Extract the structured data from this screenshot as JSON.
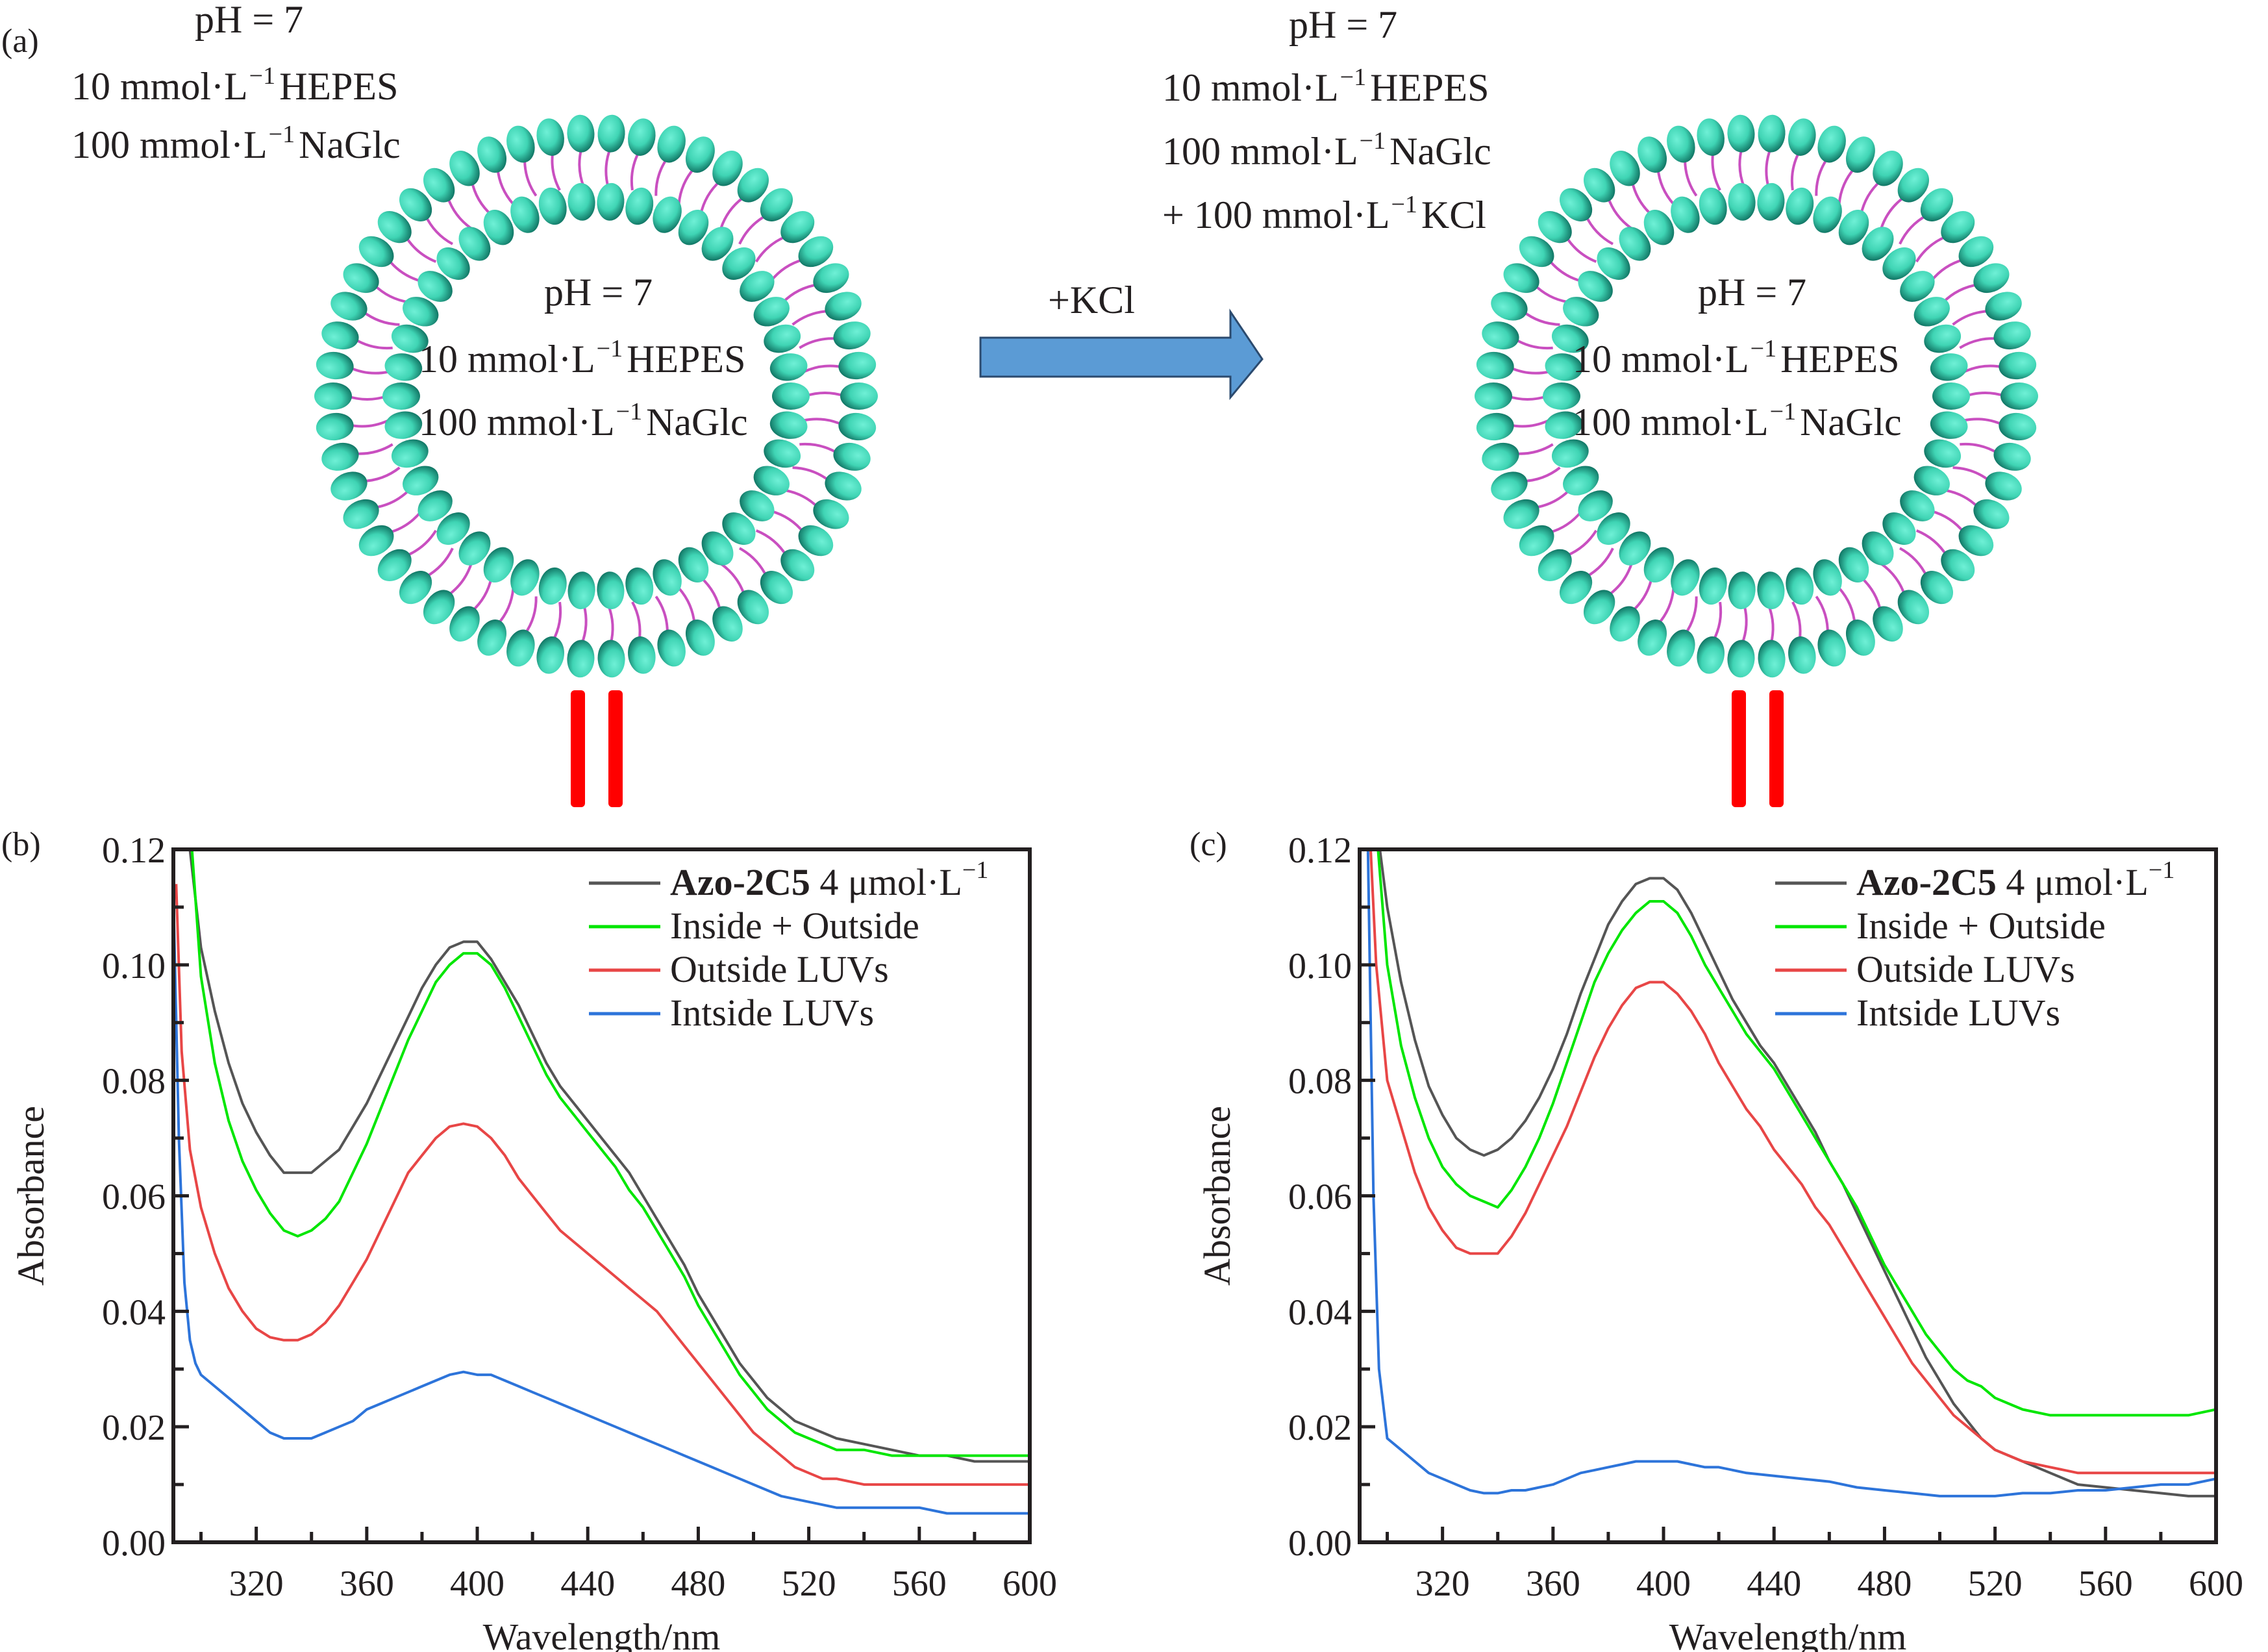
{
  "panel_labels": {
    "a": "(a)",
    "b": "(b)",
    "c": "(c)"
  },
  "scheme": {
    "left_outside": [
      "pH = 7",
      "10 mmol·L",
      "HEPES",
      "100 mmol·L",
      "NaGlc"
    ],
    "left_inside": [
      "pH = 7",
      "10 mmol·L",
      "HEPES",
      "100 mmol·L",
      "NaGlc"
    ],
    "right_outside": [
      "pH = 7",
      "10 mmol·L",
      "HEPES",
      "100 mmol·L",
      "NaGlc",
      "+ 100 mmol·L",
      "KCl"
    ],
    "right_inside": [
      "pH = 7",
      "10 mmol·L",
      "HEPES",
      "100 mmol·L",
      "NaGlc"
    ],
    "unit_exponent": "−1",
    "arrow_label": "+KCl",
    "colors": {
      "headgroup": "#3fd4b4",
      "tail": "#c94fc0",
      "arrow": "#5b9bd5",
      "equals": "#ff0000"
    }
  },
  "chart_data": [
    {
      "panel": "b",
      "type": "line",
      "title": "",
      "xlabel": "Wavelength/nm",
      "ylabel": "Absorbance",
      "xlim": [
        290,
        600
      ],
      "ylim": [
        0,
        0.12
      ],
      "xticks": [
        320,
        360,
        400,
        440,
        480,
        520,
        560,
        600
      ],
      "yticks": [
        "0.00",
        "0.02",
        "0.04",
        "0.06",
        "0.08",
        "0.10",
        "0.12"
      ],
      "legend_position": "top-right",
      "series": [
        {
          "name": "Azo-2C5",
          "name_suffix": " 4 μmol·L",
          "name_exp": "−1",
          "color": "#555555",
          "x": [
            293,
            296,
            300,
            305,
            310,
            315,
            320,
            325,
            330,
            335,
            340,
            345,
            350,
            355,
            360,
            365,
            370,
            375,
            380,
            385,
            390,
            395,
            400,
            405,
            410,
            415,
            420,
            425,
            430,
            435,
            440,
            445,
            450,
            455,
            460,
            465,
            470,
            475,
            480,
            485,
            490,
            495,
            500,
            505,
            510,
            515,
            520,
            525,
            530,
            540,
            550,
            560,
            570,
            580,
            590,
            600
          ],
          "y": [
            0.135,
            0.12,
            0.103,
            0.092,
            0.083,
            0.076,
            0.071,
            0.067,
            0.064,
            0.064,
            0.064,
            0.066,
            0.068,
            0.072,
            0.076,
            0.081,
            0.086,
            0.091,
            0.096,
            0.1,
            0.103,
            0.104,
            0.104,
            0.101,
            0.097,
            0.093,
            0.088,
            0.083,
            0.079,
            0.076,
            0.073,
            0.07,
            0.067,
            0.064,
            0.06,
            0.056,
            0.052,
            0.048,
            0.043,
            0.039,
            0.035,
            0.031,
            0.028,
            0.025,
            0.023,
            0.021,
            0.02,
            0.019,
            0.018,
            0.017,
            0.016,
            0.015,
            0.015,
            0.014,
            0.014,
            0.014
          ]
        },
        {
          "name": "Inside + Outside",
          "color": "#00e600",
          "x": [
            296,
            300,
            305,
            310,
            315,
            320,
            325,
            330,
            335,
            340,
            345,
            350,
            355,
            360,
            365,
            370,
            375,
            380,
            385,
            390,
            395,
            400,
            405,
            410,
            415,
            420,
            425,
            430,
            435,
            440,
            445,
            450,
            455,
            460,
            465,
            470,
            475,
            480,
            485,
            490,
            495,
            500,
            505,
            510,
            515,
            520,
            525,
            530,
            540,
            550,
            560,
            570,
            580,
            590,
            600
          ],
          "y": [
            0.125,
            0.098,
            0.083,
            0.073,
            0.066,
            0.061,
            0.057,
            0.054,
            0.053,
            0.054,
            0.056,
            0.059,
            0.064,
            0.069,
            0.075,
            0.081,
            0.087,
            0.092,
            0.097,
            0.1,
            0.102,
            0.102,
            0.1,
            0.096,
            0.091,
            0.086,
            0.081,
            0.077,
            0.074,
            0.071,
            0.068,
            0.065,
            0.061,
            0.058,
            0.054,
            0.05,
            0.046,
            0.041,
            0.037,
            0.033,
            0.029,
            0.026,
            0.023,
            0.021,
            0.019,
            0.018,
            0.017,
            0.016,
            0.016,
            0.015,
            0.015,
            0.015,
            0.015,
            0.015,
            0.015
          ]
        },
        {
          "name": "Outside LUVs",
          "color": "#e84646",
          "x": [
            291,
            293,
            296,
            300,
            305,
            310,
            315,
            320,
            325,
            330,
            335,
            340,
            345,
            350,
            355,
            360,
            365,
            370,
            375,
            380,
            385,
            390,
            395,
            400,
            405,
            410,
            415,
            420,
            425,
            430,
            435,
            440,
            445,
            450,
            455,
            460,
            465,
            470,
            475,
            480,
            485,
            490,
            495,
            500,
            505,
            510,
            515,
            520,
            525,
            530,
            540,
            550,
            560,
            570,
            580,
            590,
            600
          ],
          "y": [
            0.114,
            0.085,
            0.068,
            0.058,
            0.05,
            0.044,
            0.04,
            0.037,
            0.0355,
            0.035,
            0.035,
            0.036,
            0.038,
            0.041,
            0.045,
            0.049,
            0.054,
            0.059,
            0.064,
            0.067,
            0.07,
            0.072,
            0.0725,
            0.072,
            0.07,
            0.067,
            0.063,
            0.06,
            0.057,
            0.054,
            0.052,
            0.05,
            0.048,
            0.046,
            0.044,
            0.042,
            0.04,
            0.037,
            0.034,
            0.031,
            0.028,
            0.025,
            0.022,
            0.019,
            0.017,
            0.015,
            0.013,
            0.012,
            0.011,
            0.011,
            0.01,
            0.01,
            0.01,
            0.01,
            0.01,
            0.01,
            0.01
          ]
        },
        {
          "name": "Intside LUVs",
          "color": "#2d74da",
          "x": [
            290,
            292,
            294,
            296,
            298,
            300,
            305,
            310,
            315,
            320,
            325,
            330,
            335,
            340,
            345,
            350,
            355,
            360,
            365,
            370,
            375,
            380,
            385,
            390,
            395,
            400,
            405,
            410,
            415,
            420,
            425,
            430,
            435,
            440,
            445,
            450,
            455,
            460,
            465,
            470,
            475,
            480,
            485,
            490,
            495,
            500,
            505,
            510,
            520,
            530,
            540,
            550,
            560,
            570,
            580,
            590,
            600
          ],
          "y": [
            0.112,
            0.07,
            0.045,
            0.035,
            0.031,
            0.029,
            0.027,
            0.025,
            0.023,
            0.021,
            0.019,
            0.018,
            0.018,
            0.018,
            0.019,
            0.02,
            0.021,
            0.023,
            0.024,
            0.025,
            0.026,
            0.027,
            0.028,
            0.029,
            0.0295,
            0.029,
            0.029,
            0.028,
            0.027,
            0.026,
            0.025,
            0.024,
            0.023,
            0.022,
            0.021,
            0.02,
            0.019,
            0.018,
            0.017,
            0.016,
            0.015,
            0.014,
            0.013,
            0.012,
            0.011,
            0.01,
            0.009,
            0.008,
            0.007,
            0.006,
            0.006,
            0.006,
            0.006,
            0.005,
            0.005,
            0.005,
            0.005
          ]
        }
      ]
    },
    {
      "panel": "c",
      "type": "line",
      "title": "",
      "xlabel": "Wavelength/nm",
      "ylabel": "Absorbance",
      "xlim": [
        290,
        600
      ],
      "ylim": [
        0,
        0.12
      ],
      "xticks": [
        320,
        360,
        400,
        440,
        480,
        520,
        560,
        600
      ],
      "yticks": [
        "0.00",
        "0.02",
        "0.04",
        "0.06",
        "0.08",
        "0.10",
        "0.12"
      ],
      "legend_position": "top-right",
      "series": [
        {
          "name": "Azo-2C5",
          "name_suffix": " 4 μmol·L",
          "name_exp": "−1",
          "color": "#555555",
          "x": [
            296,
            300,
            305,
            310,
            315,
            320,
            325,
            330,
            335,
            340,
            345,
            350,
            355,
            360,
            365,
            370,
            375,
            380,
            385,
            390,
            395,
            400,
            405,
            410,
            415,
            420,
            425,
            430,
            435,
            440,
            445,
            450,
            455,
            460,
            465,
            470,
            475,
            480,
            485,
            490,
            495,
            500,
            505,
            510,
            515,
            520,
            525,
            530,
            540,
            550,
            560,
            570,
            580,
            590,
            600
          ],
          "y": [
            0.125,
            0.11,
            0.097,
            0.087,
            0.079,
            0.074,
            0.07,
            0.068,
            0.067,
            0.068,
            0.07,
            0.073,
            0.077,
            0.082,
            0.088,
            0.095,
            0.101,
            0.107,
            0.111,
            0.114,
            0.115,
            0.115,
            0.113,
            0.109,
            0.104,
            0.099,
            0.094,
            0.09,
            0.086,
            0.083,
            0.079,
            0.075,
            0.071,
            0.066,
            0.062,
            0.057,
            0.052,
            0.047,
            0.042,
            0.037,
            0.032,
            0.028,
            0.024,
            0.021,
            0.018,
            0.016,
            0.015,
            0.014,
            0.012,
            0.01,
            0.0095,
            0.009,
            0.0085,
            0.008,
            0.008
          ]
        },
        {
          "name": "Inside + Outside",
          "color": "#00e600",
          "x": [
            296,
            300,
            305,
            310,
            315,
            320,
            325,
            330,
            335,
            340,
            345,
            350,
            355,
            360,
            365,
            370,
            375,
            380,
            385,
            390,
            395,
            400,
            405,
            410,
            415,
            420,
            425,
            430,
            435,
            440,
            445,
            450,
            455,
            460,
            465,
            470,
            475,
            480,
            485,
            490,
            495,
            500,
            505,
            510,
            515,
            520,
            525,
            530,
            540,
            550,
            560,
            570,
            580,
            590,
            600
          ],
          "y": [
            0.124,
            0.1,
            0.086,
            0.077,
            0.07,
            0.065,
            0.062,
            0.06,
            0.059,
            0.058,
            0.061,
            0.065,
            0.07,
            0.076,
            0.083,
            0.09,
            0.097,
            0.102,
            0.106,
            0.109,
            0.111,
            0.111,
            0.109,
            0.105,
            0.1,
            0.096,
            0.092,
            0.088,
            0.085,
            0.082,
            0.078,
            0.074,
            0.07,
            0.066,
            0.062,
            0.058,
            0.053,
            0.048,
            0.044,
            0.04,
            0.036,
            0.033,
            0.03,
            0.028,
            0.027,
            0.025,
            0.024,
            0.023,
            0.022,
            0.022,
            0.022,
            0.022,
            0.022,
            0.022,
            0.023
          ]
        },
        {
          "name": "Outside LUVs",
          "color": "#e84646",
          "x": [
            294,
            296,
            300,
            305,
            310,
            315,
            320,
            325,
            330,
            335,
            340,
            345,
            350,
            355,
            360,
            365,
            370,
            375,
            380,
            385,
            390,
            395,
            400,
            405,
            410,
            415,
            420,
            425,
            430,
            435,
            440,
            445,
            450,
            455,
            460,
            465,
            470,
            475,
            480,
            485,
            490,
            495,
            500,
            505,
            510,
            515,
            520,
            525,
            530,
            540,
            550,
            560,
            570,
            580,
            590,
            600
          ],
          "y": [
            0.12,
            0.1,
            0.08,
            0.072,
            0.064,
            0.058,
            0.054,
            0.051,
            0.05,
            0.05,
            0.05,
            0.053,
            0.057,
            0.062,
            0.067,
            0.072,
            0.078,
            0.084,
            0.089,
            0.093,
            0.096,
            0.097,
            0.097,
            0.095,
            0.092,
            0.088,
            0.083,
            0.079,
            0.075,
            0.072,
            0.068,
            0.065,
            0.062,
            0.058,
            0.055,
            0.051,
            0.047,
            0.043,
            0.039,
            0.035,
            0.031,
            0.028,
            0.025,
            0.022,
            0.02,
            0.018,
            0.016,
            0.015,
            0.014,
            0.013,
            0.012,
            0.012,
            0.012,
            0.012,
            0.012,
            0.012
          ]
        },
        {
          "name": "Intside LUVs",
          "color": "#2d74da",
          "x": [
            293,
            295,
            297,
            300,
            305,
            310,
            315,
            320,
            325,
            330,
            335,
            340,
            345,
            350,
            355,
            360,
            365,
            370,
            375,
            380,
            385,
            390,
            395,
            400,
            405,
            410,
            415,
            420,
            430,
            440,
            450,
            460,
            470,
            480,
            490,
            500,
            510,
            520,
            530,
            540,
            550,
            560,
            570,
            580,
            590,
            600
          ],
          "y": [
            0.12,
            0.06,
            0.03,
            0.018,
            0.016,
            0.014,
            0.012,
            0.011,
            0.01,
            0.009,
            0.0085,
            0.0085,
            0.009,
            0.009,
            0.0095,
            0.01,
            0.011,
            0.012,
            0.0125,
            0.013,
            0.0135,
            0.014,
            0.014,
            0.014,
            0.014,
            0.0135,
            0.013,
            0.013,
            0.012,
            0.0115,
            0.011,
            0.0105,
            0.0095,
            0.009,
            0.0085,
            0.008,
            0.008,
            0.008,
            0.0085,
            0.0085,
            0.009,
            0.009,
            0.0095,
            0.01,
            0.01,
            0.011
          ]
        }
      ]
    }
  ]
}
